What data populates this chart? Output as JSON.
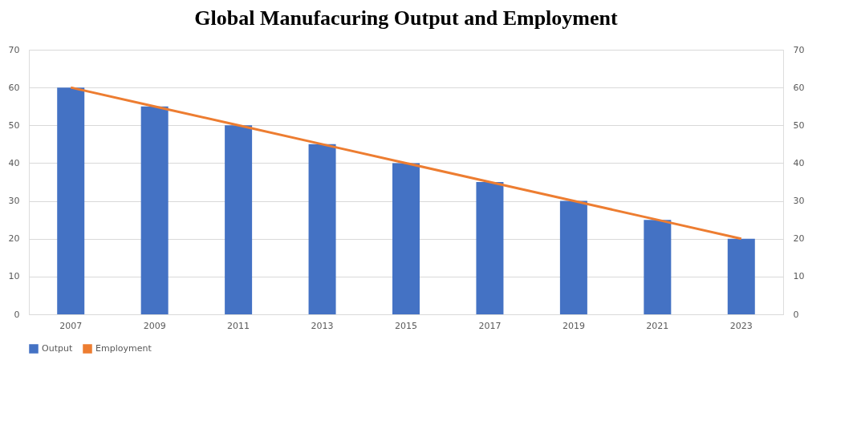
{
  "chart_data": {
    "type": "bar",
    "title": "Global Manufacuring Output and Employment",
    "categories": [
      "2007",
      "2009",
      "2011",
      "2013",
      "2015",
      "2017",
      "2019",
      "2021",
      "2023"
    ],
    "series": [
      {
        "name": "Output",
        "color": "#4472c4",
        "values": [
          60,
          55,
          50,
          45,
          40,
          35,
          30,
          25,
          20
        ]
      },
      {
        "name": "Employment",
        "type": "line",
        "axis": "y2",
        "color": "#ed7d31",
        "values": [
          60,
          55,
          50,
          45,
          40,
          35,
          30,
          25,
          20
        ]
      }
    ],
    "ylim": [
      0,
      70
    ],
    "yticks": [
      0,
      10,
      20,
      30,
      40,
      50,
      60,
      70
    ],
    "y2lim": [
      0,
      70
    ],
    "y2ticks": [
      0,
      10,
      20,
      30,
      40,
      50,
      60,
      70
    ],
    "grid": "y",
    "legend": "bottom",
    "marker": "none",
    "line_style": "solid"
  }
}
